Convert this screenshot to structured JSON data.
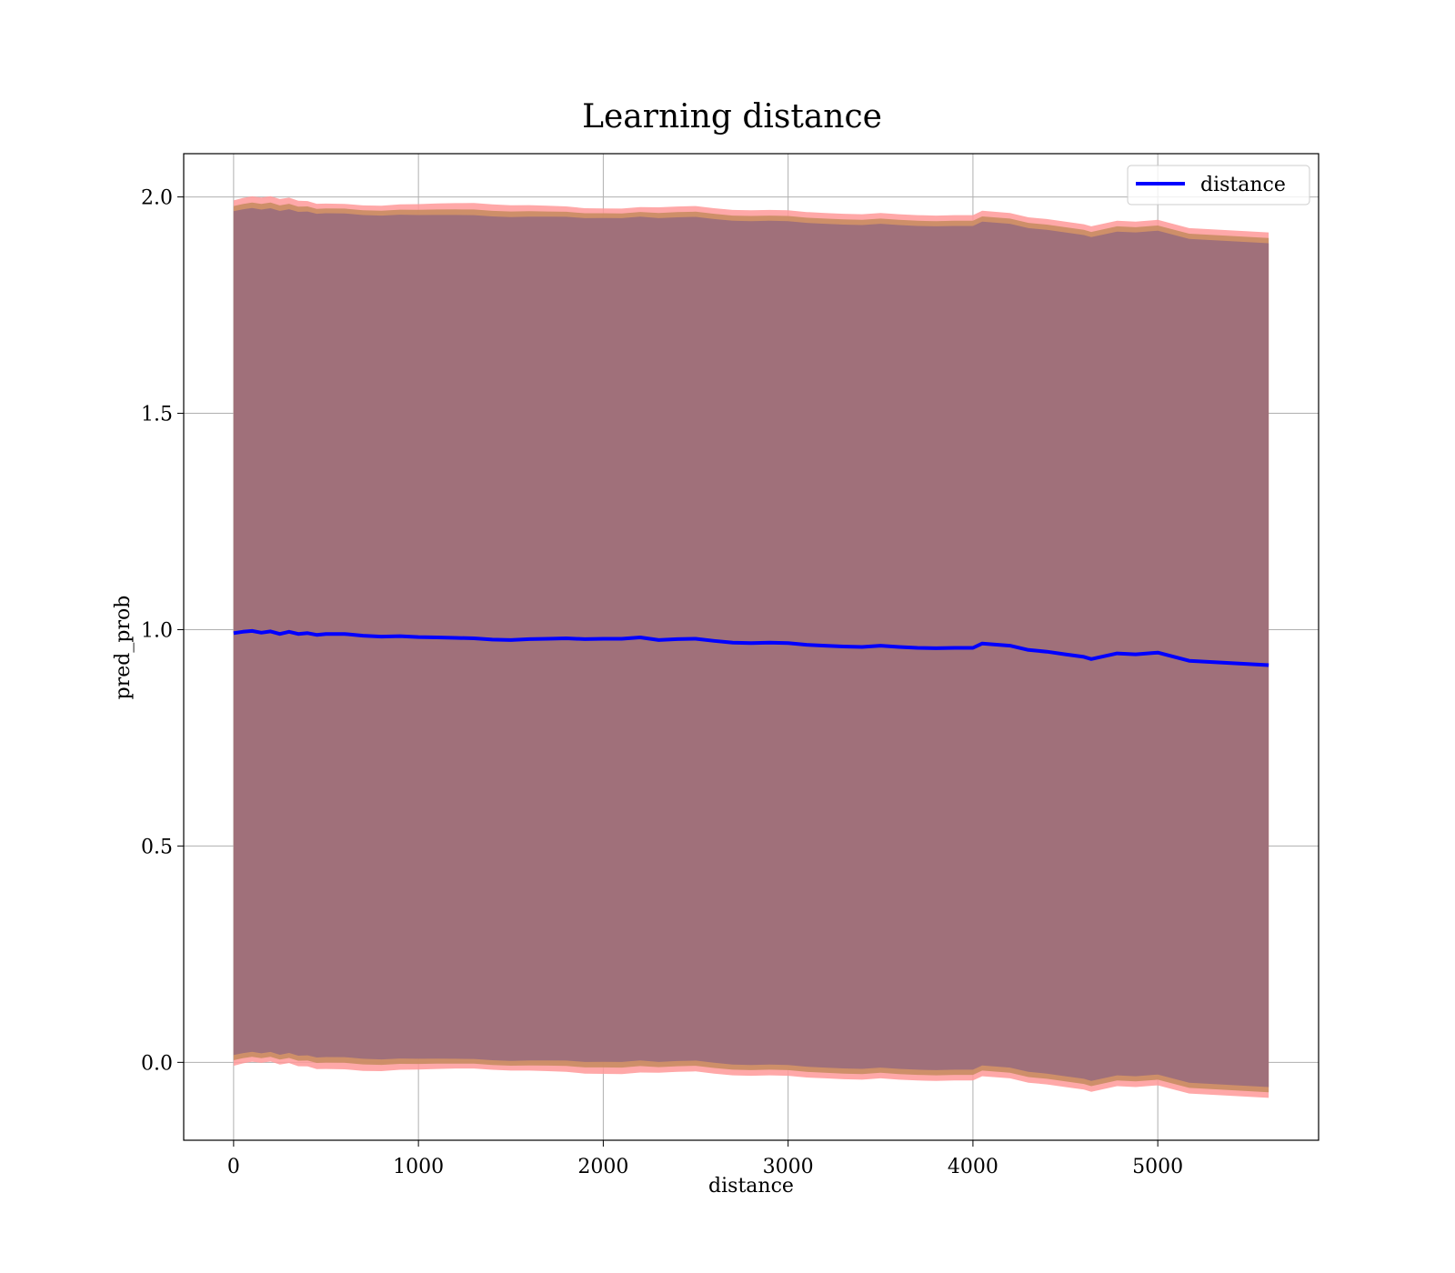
{
  "chart_data": {
    "type": "line",
    "title": "Learning distance",
    "xlabel": "distance",
    "ylabel": "pred_prob",
    "xlim": [
      -270,
      5870
    ],
    "ylim": [
      -0.18,
      2.1
    ],
    "xticks": [
      "0",
      "1000",
      "2000",
      "3000",
      "4000",
      "5000"
    ],
    "yticks": [
      "0.0",
      "0.5",
      "1.0",
      "1.5",
      "2.0"
    ],
    "grid": true,
    "legend": {
      "position": "top-right",
      "entries": [
        "distance"
      ]
    },
    "colors": {
      "line": "#0000ff",
      "band_outer": "#ff9999",
      "band_middle": "#c98c62",
      "band_inner": "#a0707a",
      "grid": "#b0b0b0"
    },
    "series": [
      {
        "name": "distance",
        "x": [
          0,
          50,
          100,
          150,
          200,
          250,
          300,
          350,
          400,
          450,
          500,
          600,
          700,
          800,
          900,
          1000,
          1100,
          1200,
          1300,
          1400,
          1500,
          1600,
          1700,
          1800,
          1900,
          2000,
          2100,
          2200,
          2300,
          2400,
          2500,
          2600,
          2700,
          2800,
          2900,
          3000,
          3100,
          3200,
          3300,
          3400,
          3500,
          3600,
          3700,
          3800,
          3900,
          4000,
          4050,
          4200,
          4300,
          4400,
          4500,
          4600,
          4640,
          4780,
          4880,
          5000,
          5170,
          5600
        ],
        "values": [
          0.992,
          0.995,
          0.997,
          0.993,
          0.996,
          0.99,
          0.995,
          0.99,
          0.992,
          0.988,
          0.99,
          0.99,
          0.986,
          0.984,
          0.985,
          0.983,
          0.982,
          0.981,
          0.98,
          0.977,
          0.976,
          0.978,
          0.979,
          0.98,
          0.978,
          0.979,
          0.979,
          0.982,
          0.976,
          0.978,
          0.979,
          0.974,
          0.97,
          0.969,
          0.97,
          0.969,
          0.965,
          0.963,
          0.961,
          0.96,
          0.963,
          0.96,
          0.958,
          0.957,
          0.958,
          0.958,
          0.968,
          0.963,
          0.953,
          0.949,
          0.943,
          0.937,
          0.932,
          0.945,
          0.943,
          0.947,
          0.928,
          0.918
        ]
      }
    ]
  }
}
